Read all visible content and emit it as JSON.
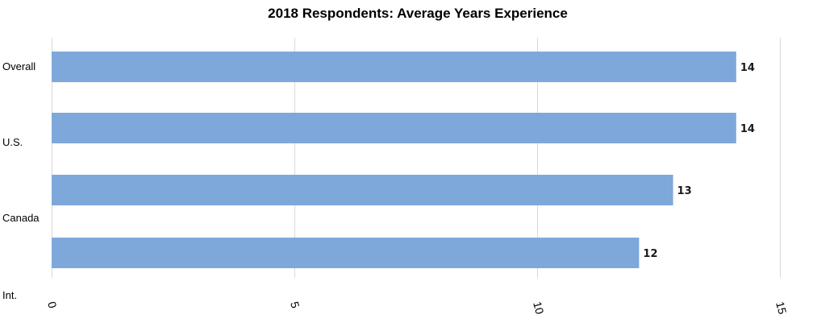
{
  "chart_data": {
    "type": "bar",
    "orientation": "horizontal",
    "title": "2018 Respondents: Average Years Experience",
    "xlabel": "",
    "ylabel": "",
    "bars": [
      {
        "value": 14.1,
        "label": "14"
      },
      {
        "value": 14.1,
        "label": "14"
      },
      {
        "value": 12.8,
        "label": "13"
      },
      {
        "value": 12.1,
        "label": "12"
      }
    ],
    "category_labels": [
      "Overall",
      "U.S.",
      "Canada",
      "Int."
    ],
    "xlim": [
      0,
      15
    ],
    "x_ticks": [
      "0",
      "5",
      "10",
      "15"
    ],
    "x_tick_values": [
      0,
      5,
      10,
      15
    ],
    "grid": true,
    "legend": "none",
    "bar_color": "#7ea8da",
    "grid_color": "#d9d9d9"
  }
}
